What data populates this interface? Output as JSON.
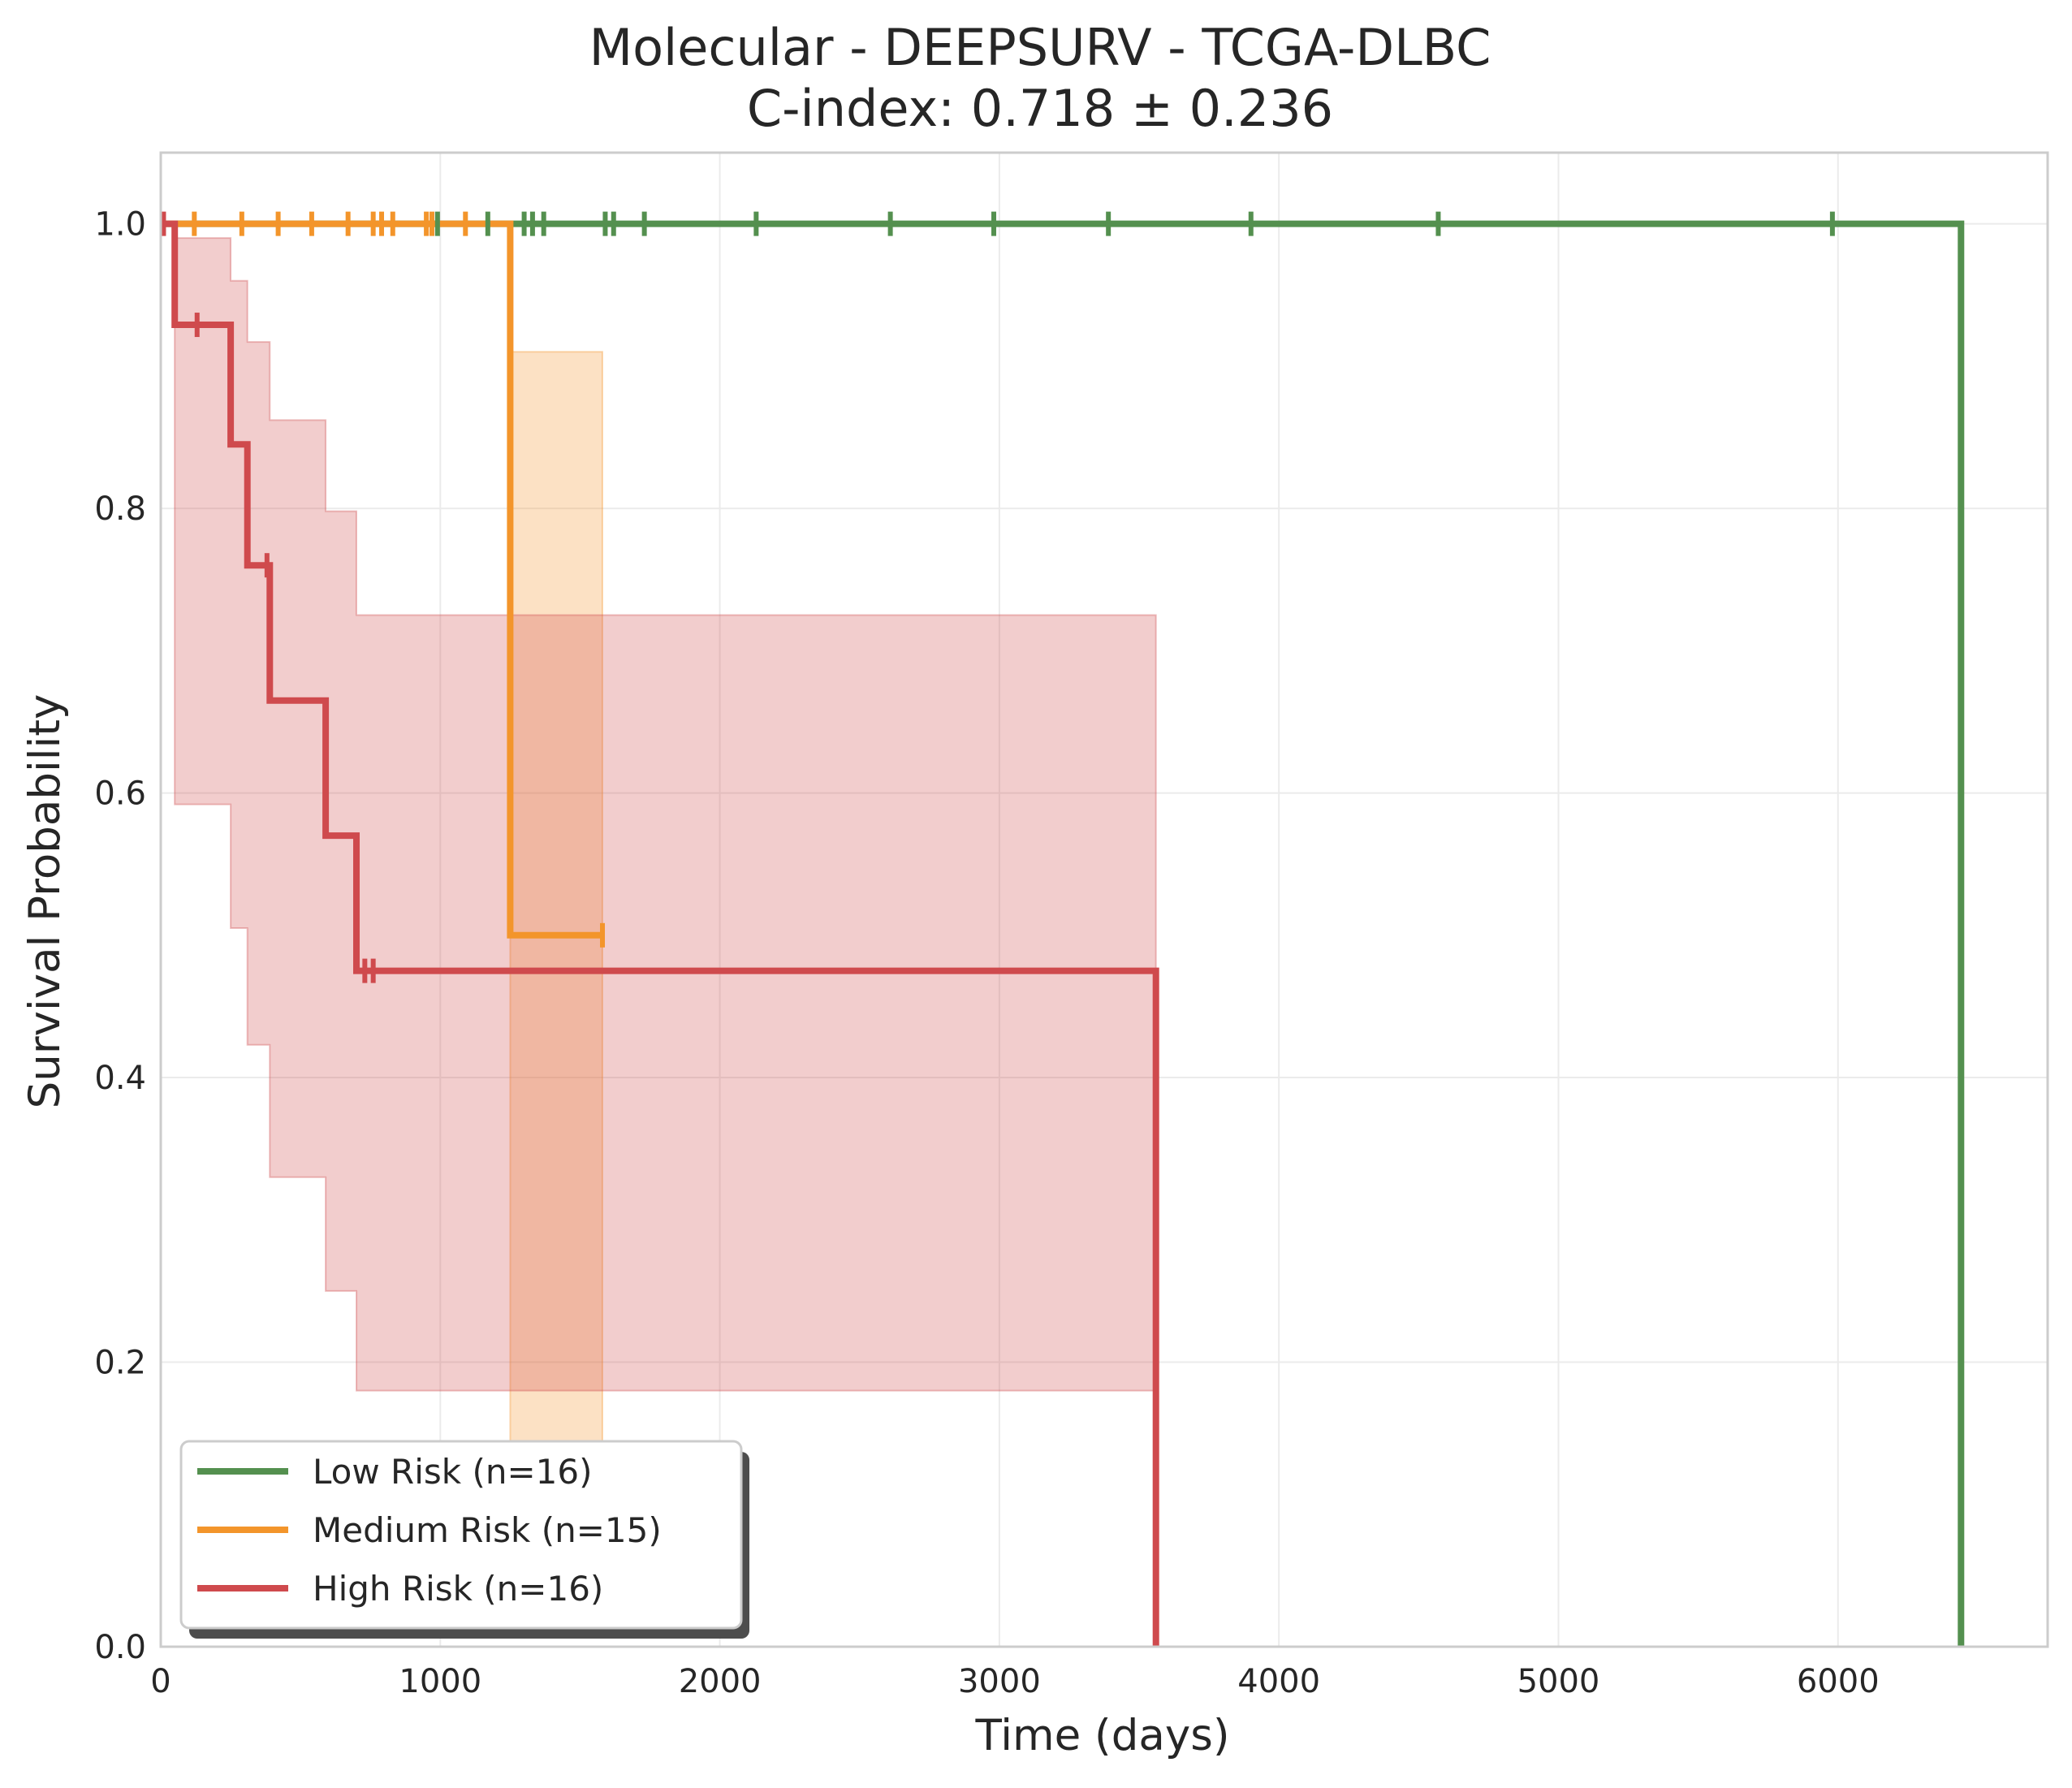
{
  "chart_data": {
    "type": "line",
    "subtype": "kaplan-meier",
    "title": "Molecular - DEEPSURV - TCGA-DLBC",
    "subtitle": "C-index: 0.718 ± 0.236",
    "xlabel": "Time (days)",
    "ylabel": "Survival Probability",
    "xlim": [
      0,
      6750
    ],
    "ylim": [
      0,
      1.05
    ],
    "xticks": [
      0,
      1000,
      2000,
      3000,
      4000,
      5000,
      6000
    ],
    "yticks": [
      0.0,
      0.2,
      0.4,
      0.6,
      0.8,
      1.0
    ],
    "xtick_labels": [
      "0",
      "1000",
      "2000",
      "3000",
      "4000",
      "5000",
      "6000"
    ],
    "ytick_labels": [
      "0.0",
      "0.2",
      "0.4",
      "0.6",
      "0.8",
      "1.0"
    ],
    "grid": true,
    "legend_position": "lower-left",
    "series": [
      {
        "name": "Low Risk (n=16)",
        "color": "#54904f",
        "steps": [
          [
            0,
            1.0
          ],
          [
            6440,
            0.0
          ]
        ],
        "ci": null,
        "censors": [
          [
            990,
            1.0
          ],
          [
            1170,
            1.0
          ],
          [
            1300,
            1.0
          ],
          [
            1330,
            1.0
          ],
          [
            1370,
            1.0
          ],
          [
            1590,
            1.0
          ],
          [
            1620,
            1.0
          ],
          [
            1730,
            1.0
          ],
          [
            2130,
            1.0
          ],
          [
            2610,
            1.0
          ],
          [
            2980,
            1.0
          ],
          [
            3390,
            1.0
          ],
          [
            3900,
            1.0
          ],
          [
            4570,
            1.0
          ],
          [
            5980,
            1.0
          ]
        ]
      },
      {
        "name": "Medium Risk (n=15)",
        "color": "#f3952b",
        "steps": [
          [
            0,
            1.0
          ],
          [
            1250,
            0.5
          ]
        ],
        "end": 1580,
        "ci": [
          [
            0,
            1.0,
            1.0
          ],
          [
            1250,
            0.09,
            0.91
          ]
        ],
        "ci_end": 1580,
        "censors": [
          [
            120,
            1.0
          ],
          [
            290,
            1.0
          ],
          [
            420,
            1.0
          ],
          [
            540,
            1.0
          ],
          [
            670,
            1.0
          ],
          [
            760,
            1.0
          ],
          [
            790,
            1.0
          ],
          [
            830,
            1.0
          ],
          [
            950,
            1.0
          ],
          [
            970,
            1.0
          ],
          [
            1090,
            1.0
          ],
          [
            1580,
            0.5
          ]
        ]
      },
      {
        "name": "High Risk (n=16)",
        "color": "#cf4a4d",
        "steps": [
          [
            0,
            1.0
          ],
          [
            50,
            0.929
          ],
          [
            250,
            0.845
          ],
          [
            310,
            0.76
          ],
          [
            390,
            0.665
          ],
          [
            590,
            0.57
          ],
          [
            700,
            0.475
          ],
          [
            3560,
            0.0
          ]
        ],
        "ci": [
          [
            50,
            0.592,
            0.99
          ],
          [
            250,
            0.505,
            0.96
          ],
          [
            310,
            0.423,
            0.917
          ],
          [
            390,
            0.33,
            0.862
          ],
          [
            590,
            0.25,
            0.798
          ],
          [
            700,
            0.18,
            0.725
          ]
        ],
        "ci_end": 3560,
        "censors": [
          [
            10,
            1.0
          ],
          [
            130,
            0.929
          ],
          [
            380,
            0.76
          ],
          [
            730,
            0.475
          ],
          [
            760,
            0.475
          ]
        ]
      }
    ]
  }
}
